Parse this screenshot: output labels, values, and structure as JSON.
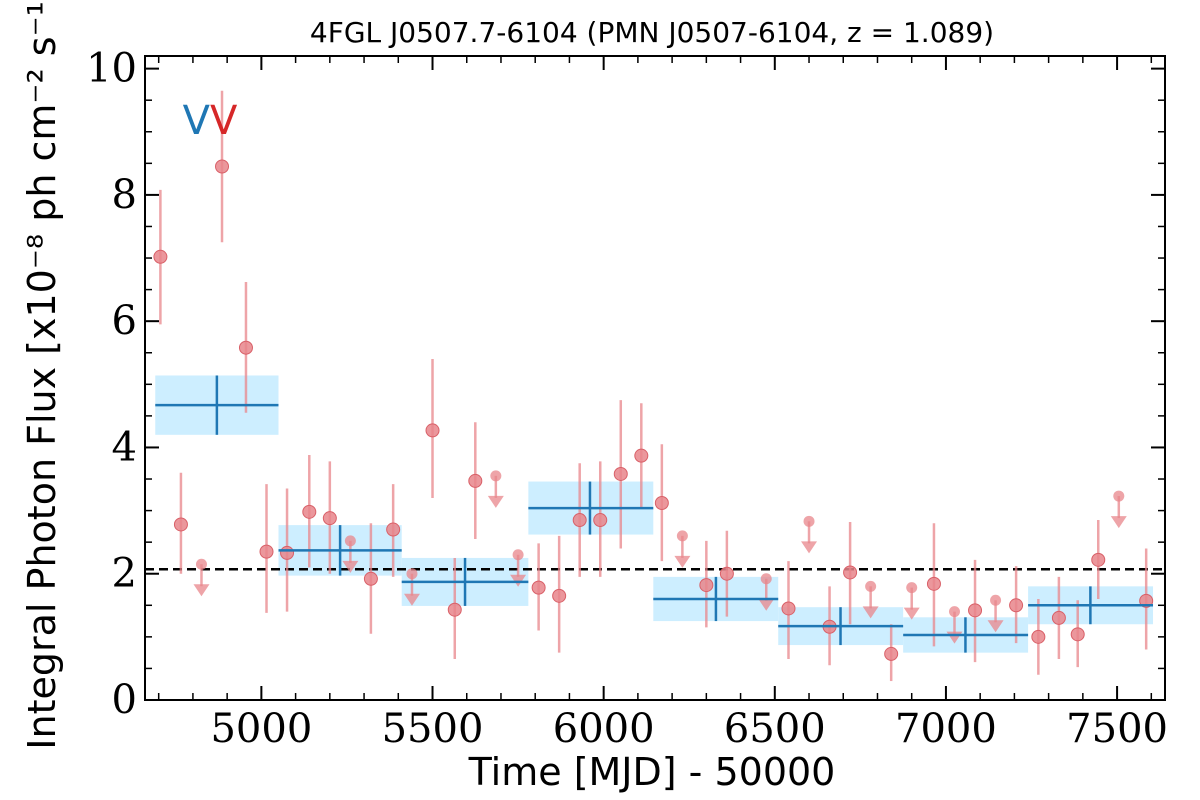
{
  "chart_data": {
    "type": "scatter",
    "title": "4FGL J0507.7-6104 (PMN J0507-6104, z = 1.089)",
    "xlabel": "Time [MJD] - 50000",
    "ylabel": "Integral Photon Flux [x10⁻⁸ ph cm⁻² s⁻¹]",
    "xlim": [
      4660,
      7640
    ],
    "ylim": [
      0,
      10.2
    ],
    "xticks": [
      5000,
      5500,
      6000,
      6500,
      7000,
      7500
    ],
    "yticks": [
      0,
      2,
      4,
      6,
      8,
      10
    ],
    "xtick_labels": [
      "5000",
      "5500",
      "6000",
      "6500",
      "7000",
      "7500"
    ],
    "ytick_labels": [
      "0",
      "2",
      "4",
      "6",
      "8",
      "10"
    ],
    "reference_line": {
      "style": "dashed",
      "color": "#000000",
      "y": 2.07
    },
    "markers": [
      {
        "label": "V",
        "x": 4810,
        "y": 9.2,
        "color": "#1f77b4"
      },
      {
        "label": "V",
        "x": 4890,
        "y": 9.2,
        "color": "#d62728"
      }
    ],
    "series": [
      {
        "color": "#e8858b",
        "points": [
          {
            "x": 4705,
            "y": 7.02,
            "lo": 5.95,
            "hi": 8.08
          },
          {
            "x": 4765,
            "y": 2.78,
            "lo": 2.0,
            "hi": 3.6
          },
          {
            "x": 4885,
            "y": 8.45,
            "lo": 7.25,
            "hi": 9.65
          },
          {
            "x": 4955,
            "y": 5.58,
            "lo": 4.55,
            "hi": 6.62
          },
          {
            "x": 5015,
            "y": 2.35,
            "lo": 1.38,
            "hi": 3.42
          },
          {
            "x": 5075,
            "y": 2.33,
            "lo": 1.4,
            "hi": 3.35
          },
          {
            "x": 5140,
            "y": 2.98,
            "lo": 2.1,
            "hi": 3.88
          },
          {
            "x": 5200,
            "y": 2.88,
            "lo": 2.0,
            "hi": 3.78
          },
          {
            "x": 5320,
            "y": 1.92,
            "lo": 1.05,
            "hi": 2.8
          },
          {
            "x": 5385,
            "y": 2.7,
            "lo": 1.95,
            "hi": 3.42
          },
          {
            "x": 5500,
            "y": 4.27,
            "lo": 3.2,
            "hi": 5.4
          },
          {
            "x": 5565,
            "y": 1.43,
            "lo": 0.65,
            "hi": 2.25
          },
          {
            "x": 5625,
            "y": 3.47,
            "lo": 2.55,
            "hi": 4.4
          },
          {
            "x": 5810,
            "y": 1.78,
            "lo": 1.1,
            "hi": 2.48
          },
          {
            "x": 5870,
            "y": 1.65,
            "lo": 0.75,
            "hi": 2.6
          },
          {
            "x": 5930,
            "y": 2.85,
            "lo": 1.95,
            "hi": 3.75
          },
          {
            "x": 5990,
            "y": 2.85,
            "lo": 1.95,
            "hi": 3.78
          },
          {
            "x": 6050,
            "y": 3.58,
            "lo": 2.4,
            "hi": 4.75
          },
          {
            "x": 6110,
            "y": 3.87,
            "lo": 3.05,
            "hi": 4.7
          },
          {
            "x": 6170,
            "y": 3.12,
            "lo": 2.2,
            "hi": 4.05
          },
          {
            "x": 6300,
            "y": 1.82,
            "lo": 1.15,
            "hi": 2.52
          },
          {
            "x": 6360,
            "y": 2.0,
            "lo": 1.32,
            "hi": 2.68
          },
          {
            "x": 6540,
            "y": 1.45,
            "lo": 0.65,
            "hi": 2.2
          },
          {
            "x": 6660,
            "y": 1.16,
            "lo": 0.55,
            "hi": 1.8
          },
          {
            "x": 6720,
            "y": 2.02,
            "lo": 1.2,
            "hi": 2.82
          },
          {
            "x": 6840,
            "y": 0.73,
            "lo": 0.3,
            "hi": 1.2
          },
          {
            "x": 6965,
            "y": 1.84,
            "lo": 0.85,
            "hi": 2.8
          },
          {
            "x": 7085,
            "y": 1.42,
            "lo": 0.6,
            "hi": 2.22
          },
          {
            "x": 7205,
            "y": 1.5,
            "lo": 0.9,
            "hi": 2.12
          },
          {
            "x": 7270,
            "y": 1.0,
            "lo": 0.4,
            "hi": 1.6
          },
          {
            "x": 7330,
            "y": 1.3,
            "lo": 0.65,
            "hi": 1.95
          },
          {
            "x": 7385,
            "y": 1.04,
            "lo": 0.52,
            "hi": 1.58
          },
          {
            "x": 7445,
            "y": 2.22,
            "lo": 1.6,
            "hi": 2.85
          },
          {
            "x": 7585,
            "y": 1.57,
            "lo": 0.8,
            "hi": 2.4
          }
        ],
        "upper_limits": [
          {
            "x": 4825,
            "y": 2.15
          },
          {
            "x": 5260,
            "y": 2.52
          },
          {
            "x": 5440,
            "y": 2.0
          },
          {
            "x": 5685,
            "y": 3.55
          },
          {
            "x": 5750,
            "y": 2.3
          },
          {
            "x": 6230,
            "y": 2.6
          },
          {
            "x": 6475,
            "y": 1.92
          },
          {
            "x": 6600,
            "y": 2.83
          },
          {
            "x": 6780,
            "y": 1.8
          },
          {
            "x": 6900,
            "y": 1.78
          },
          {
            "x": 7025,
            "y": 1.4
          },
          {
            "x": 7145,
            "y": 1.58
          },
          {
            "x": 7505,
            "y": 3.23
          }
        ]
      },
      {
        "color": "#1f77b4",
        "band_color": "#cdeeff",
        "bins": [
          {
            "x0": 4690,
            "x1": 5050,
            "y": 4.67,
            "band_lo": 4.2,
            "band_hi": 5.14,
            "xc": 4870,
            "err_lo": 4.2,
            "err_hi": 5.14
          },
          {
            "x0": 5050,
            "x1": 5410,
            "y": 2.37,
            "band_lo": 1.97,
            "band_hi": 2.77,
            "xc": 5230,
            "err_lo": 1.97,
            "err_hi": 2.77
          },
          {
            "x0": 5410,
            "x1": 5780,
            "y": 1.87,
            "band_lo": 1.49,
            "band_hi": 2.25,
            "xc": 5595,
            "err_lo": 1.49,
            "err_hi": 2.25
          },
          {
            "x0": 5780,
            "x1": 6145,
            "y": 3.04,
            "band_lo": 2.62,
            "band_hi": 3.46,
            "xc": 5960,
            "err_lo": 2.62,
            "err_hi": 3.46
          },
          {
            "x0": 6145,
            "x1": 6510,
            "y": 1.6,
            "band_lo": 1.25,
            "band_hi": 1.95,
            "xc": 6328,
            "err_lo": 1.25,
            "err_hi": 1.95
          },
          {
            "x0": 6510,
            "x1": 6875,
            "y": 1.17,
            "band_lo": 0.87,
            "band_hi": 1.47,
            "xc": 6692,
            "err_lo": 0.87,
            "err_hi": 1.47
          },
          {
            "x0": 6875,
            "x1": 7240,
            "y": 1.03,
            "band_lo": 0.75,
            "band_hi": 1.31,
            "xc": 7057,
            "err_lo": 0.75,
            "err_hi": 1.31
          },
          {
            "x0": 7240,
            "x1": 7605,
            "y": 1.5,
            "band_lo": 1.2,
            "band_hi": 1.8,
            "xc": 7422,
            "err_lo": 1.2,
            "err_hi": 1.8
          }
        ]
      }
    ]
  }
}
